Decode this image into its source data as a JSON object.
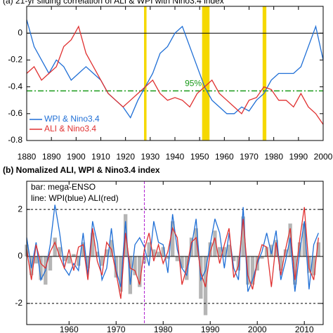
{
  "chart_data": [
    {
      "type": "line",
      "title": "(a) 21-yr sliding correlation of ALI & WPI with Nino3.4 index",
      "x": [
        1880,
        1883,
        1886,
        1889,
        1892,
        1895,
        1898,
        1901,
        1904,
        1907,
        1910,
        1913,
        1916,
        1919,
        1922,
        1925,
        1928,
        1931,
        1934,
        1937,
        1940,
        1943,
        1946,
        1949,
        1952,
        1955,
        1958,
        1961,
        1964,
        1967,
        1970,
        1973,
        1976,
        1979,
        1982,
        1985,
        1988,
        1991,
        1994,
        1997,
        2000
      ],
      "series": [
        {
          "name": "WPI & Nino3.4",
          "color": "#1f6fd6",
          "values": [
            0.1,
            -0.1,
            -0.2,
            -0.3,
            -0.2,
            -0.25,
            -0.35,
            -0.3,
            -0.25,
            -0.3,
            -0.35,
            -0.45,
            -0.5,
            -0.55,
            -0.63,
            -0.5,
            -0.4,
            -0.3,
            -0.15,
            -0.1,
            0,
            0.05,
            -0.1,
            -0.25,
            -0.4,
            -0.5,
            -0.55,
            -0.6,
            -0.6,
            -0.55,
            -0.58,
            -0.5,
            -0.45,
            -0.35,
            -0.3,
            -0.3,
            -0.3,
            -0.25,
            -0.1,
            0.05,
            -0.2
          ]
        },
        {
          "name": "ALI & Nino3.4",
          "color": "#e03030",
          "values": [
            -0.3,
            -0.25,
            -0.35,
            -0.3,
            -0.25,
            -0.1,
            -0.05,
            0.05,
            -0.15,
            -0.25,
            -0.35,
            -0.45,
            -0.5,
            -0.55,
            -0.5,
            -0.45,
            -0.4,
            -0.35,
            -0.45,
            -0.5,
            -0.48,
            -0.5,
            -0.55,
            -0.45,
            -0.4,
            -0.35,
            -0.45,
            -0.5,
            -0.55,
            -0.6,
            -0.5,
            -0.48,
            -0.4,
            -0.42,
            -0.5,
            -0.5,
            -0.55,
            -0.45,
            -0.55,
            -0.6,
            -0.68
          ]
        }
      ],
      "bands": [
        [
          1927.5,
          1928.5
        ],
        [
          1951,
          1954
        ],
        [
          1975.5,
          1977
        ]
      ],
      "band_color": "#f5d800",
      "threshold": -0.43,
      "threshold_label": "95%",
      "threshold_color": "#1a9a1a",
      "xlim": [
        1880,
        2000
      ],
      "xticks": [
        1880,
        1890,
        1900,
        1910,
        1920,
        1930,
        1940,
        1950,
        1960,
        1970,
        1980,
        1990,
        2000
      ],
      "ylim": [
        -0.8,
        0.2
      ],
      "yticks": [
        0,
        -0.2,
        -0.4,
        -0.6,
        -0.8
      ],
      "zero_line": 0
    },
    {
      "type": "bar-line",
      "title": "(b) Nomalized ALI, WPI & Nino3.4 index",
      "annotations": [
        "bar: mega-ENSO",
        "line: WPI(blue) ALI(red)"
      ],
      "x": [
        1951,
        1952,
        1953,
        1954,
        1955,
        1956,
        1957,
        1958,
        1959,
        1960,
        1961,
        1962,
        1963,
        1964,
        1965,
        1966,
        1967,
        1968,
        1969,
        1970,
        1971,
        1972,
        1973,
        1974,
        1975,
        1976,
        1977,
        1978,
        1979,
        1980,
        1981,
        1982,
        1983,
        1984,
        1985,
        1986,
        1987,
        1988,
        1989,
        1990,
        1991,
        1992,
        1993,
        1994,
        1995,
        1996,
        1997,
        1998,
        1999,
        2000,
        2001,
        2002,
        2003,
        2004,
        2005,
        2006,
        2007,
        2008,
        2009,
        2010,
        2011,
        2012,
        2013
      ],
      "bars": {
        "color": "#b5b5b5",
        "values": [
          0.5,
          -0.8,
          -0.3,
          -1.0,
          -1.2,
          -0.6,
          0.8,
          0.4,
          -0.2,
          -0.3,
          0.1,
          -0.4,
          0.6,
          -0.5,
          1.0,
          0.2,
          -0.4,
          0.3,
          0.7,
          -0.9,
          -1.5,
          1.8,
          -1.6,
          -0.8,
          -1.3,
          -0.3,
          0.6,
          0.3,
          0.2,
          0.4,
          -0.1,
          1.5,
          -0.2,
          -0.5,
          -1.0,
          0.8,
          1.2,
          -1.8,
          -2.5,
          0.6,
          1.1,
          0.4,
          0.4,
          0.5,
          -0.2,
          -0.6,
          1.7,
          -1.2,
          -1.2,
          -0.6,
          -0.1,
          0.4,
          0.5,
          0.7,
          -0.6,
          0.3,
          1.4,
          -1.2,
          0.6,
          1.4,
          -0.7,
          -0.8,
          0.6
        ]
      },
      "series": [
        {
          "color": "#1f6fd6",
          "values": [
            0.8,
            -0.5,
            0.6,
            -1.0,
            -0.6,
            0.5,
            2.2,
            1.0,
            -0.5,
            -0.8,
            -0.3,
            -0.6,
            1.0,
            -0.8,
            1.5,
            0.6,
            -1.0,
            -0.5,
            1.2,
            -0.6,
            -1.3,
            1.5,
            -1.2,
            0.5,
            0.8,
            0.4,
            -0.4,
            1.5,
            0.6,
            0.5,
            -0.7,
            1.8,
            0.3,
            -0.5,
            -0.8,
            0.4,
            1.6,
            -1.0,
            -0.6,
            0.5,
            1.6,
            1.0,
            -0.5,
            1.0,
            -0.5,
            -1.0,
            2.1,
            -1.5,
            -1.0,
            -0.3,
            0.2,
            1.0,
            0.1,
            1.1,
            -1.0,
            -0.2,
            0.8,
            -1.5,
            0.2,
            1.5,
            -1.4,
            0.5,
            1.0
          ]
        },
        {
          "color": "#e03030",
          "values": [
            0.3,
            -1.0,
            0.5,
            -0.3,
            -0.5,
            0.2,
            0.6,
            0.0,
            -0.5,
            0.3,
            -0.6,
            0.4,
            0.5,
            -1.0,
            1.2,
            -0.2,
            -0.8,
            0.6,
            0.3,
            -0.7,
            -1.8,
            1.0,
            -0.5,
            -0.6,
            -1.2,
            0.3,
            1.0,
            -0.2,
            0.5,
            -0.3,
            0.2,
            1.2,
            0.8,
            -1.2,
            -0.5,
            0.6,
            0.8,
            -0.7,
            -1.3,
            0.2,
            0.8,
            -0.3,
            0.5,
            1.2,
            -0.9,
            -0.4,
            1.6,
            -0.8,
            -1.4,
            -0.2,
            0.5,
            0.4,
            -1.3,
            0.6,
            -0.8,
            0.3,
            1.2,
            -1.0,
            0.7,
            2.1,
            -0.5,
            -1.0,
            0.8
          ]
        }
      ],
      "vline": 1976,
      "vline_color": "#b020d0",
      "hlines": [
        2,
        -2
      ],
      "zero_line": 0,
      "xlim": [
        1951,
        2014
      ],
      "xticks": [
        1960,
        1970,
        1980,
        1990,
        2000,
        2010
      ],
      "ylim": [
        -2.9,
        3.2
      ],
      "yticks": [
        -2,
        0,
        2
      ]
    }
  ]
}
